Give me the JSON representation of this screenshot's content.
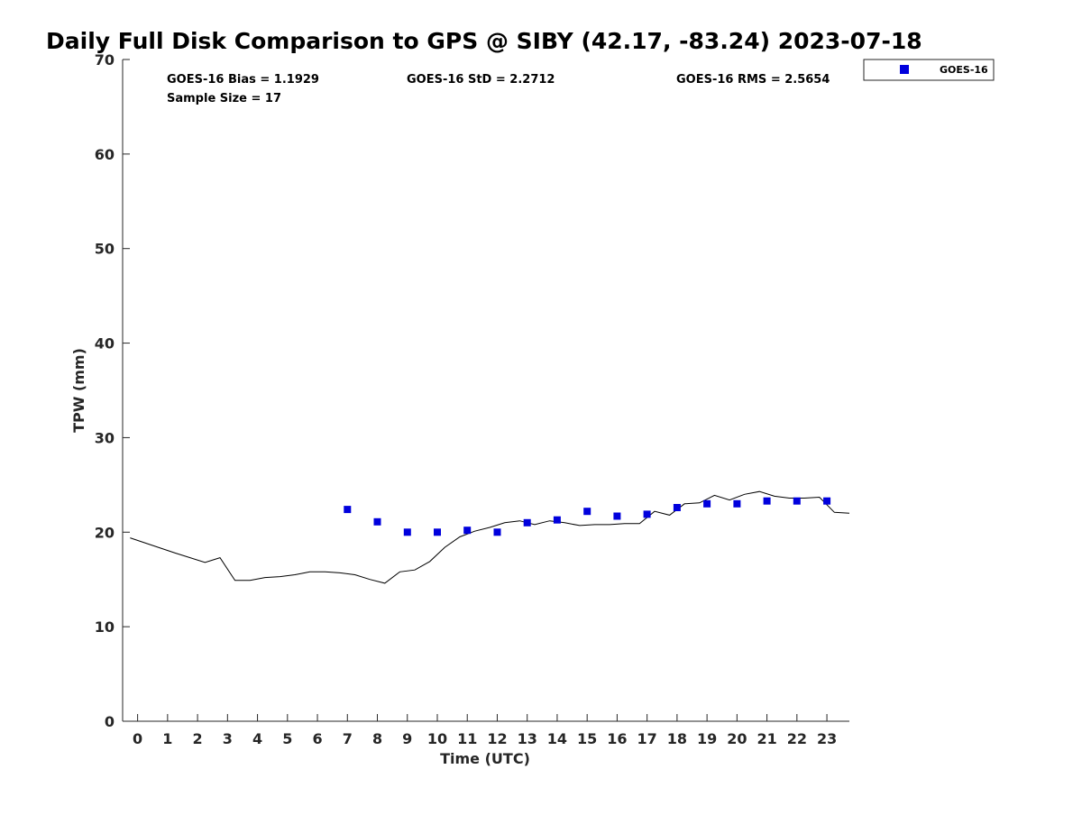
{
  "chart_data": {
    "type": "scatter",
    "title": "Daily Full Disk Comparison to GPS @ SIBY (42.17, -83.24) 2023-07-18",
    "xlabel": "Time (UTC)",
    "ylabel": "TPW (mm)",
    "xlim": [
      -0.5,
      23.75
    ],
    "ylim": [
      0,
      70
    ],
    "x_ticks": [
      0,
      1,
      2,
      3,
      4,
      5,
      6,
      7,
      8,
      9,
      10,
      11,
      12,
      13,
      14,
      15,
      16,
      17,
      18,
      19,
      20,
      21,
      22,
      23
    ],
    "y_ticks": [
      0,
      10,
      20,
      30,
      40,
      50,
      60,
      70
    ],
    "grid": false,
    "legend_position": "top-right",
    "colors": {
      "goes": "#0000dd",
      "gps_line": "#000000",
      "axis": "#262626"
    },
    "stats": {
      "bias": "GOES-16 Bias = 1.1929",
      "std": "GOES-16 StD = 2.2712",
      "rms": "GOES-16 RMS = 2.5654",
      "sample": "Sample Size = 17"
    },
    "series": [
      {
        "name": "GOES-16",
        "type": "scatter",
        "x": [
          7,
          8,
          9,
          10,
          11,
          12,
          13,
          14,
          15,
          16,
          17,
          18,
          19,
          20,
          21,
          22,
          23
        ],
        "y": [
          22.4,
          21.1,
          20.0,
          20.0,
          20.2,
          20.0,
          21.0,
          21.3,
          22.2,
          21.7,
          21.9,
          22.6,
          23.0,
          23.0,
          23.3,
          23.3,
          23.3
        ]
      },
      {
        "type": "line",
        "x": [
          -0.25,
          0.5,
          1.25,
          2.25,
          2.75,
          3.25,
          3.75,
          4.25,
          4.75,
          5.25,
          5.75,
          6.25,
          6.75,
          7.25,
          7.75,
          8.25,
          8.75,
          9.25,
          9.75,
          10.25,
          10.75,
          11.25,
          11.75,
          12.25,
          12.75,
          13.25,
          13.75,
          14.25,
          14.75,
          15.25,
          15.75,
          16.25,
          16.75,
          17.25,
          17.75,
          18.25,
          18.75,
          19.25,
          19.75,
          20.25,
          20.75,
          21.25,
          21.75,
          22.25,
          22.75,
          23.25,
          23.75
        ],
        "y": [
          19.4,
          18.6,
          17.8,
          16.8,
          17.3,
          14.9,
          14.9,
          15.2,
          15.3,
          15.5,
          15.8,
          15.8,
          15.7,
          15.5,
          15.0,
          14.6,
          15.8,
          16.0,
          16.9,
          18.4,
          19.5,
          20.1,
          20.5,
          21.0,
          21.2,
          20.8,
          21.2,
          21.0,
          20.7,
          20.8,
          20.8,
          20.9,
          20.9,
          22.2,
          21.8,
          23.0,
          23.1,
          23.9,
          23.4,
          24.0,
          24.3,
          23.8,
          23.6,
          23.6,
          23.7,
          22.1,
          22.0
        ]
      }
    ]
  }
}
